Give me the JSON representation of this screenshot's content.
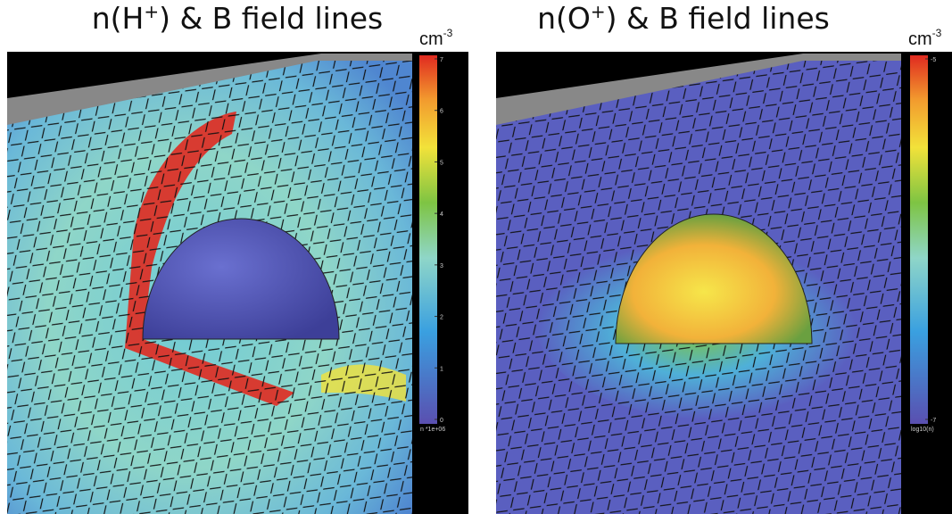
{
  "panels": [
    {
      "title": {
        "prefix": "n(H",
        "superscript": "+",
        "suffix": ") & B field lines"
      },
      "unit": {
        "base": "cm",
        "superscript": "-3"
      },
      "colorbar": {
        "tick_labels": [
          "0",
          "1",
          "2",
          "3",
          "4",
          "5",
          "6",
          "7"
        ],
        "footer": "n *1e+06"
      }
    },
    {
      "title": {
        "prefix": "n(O",
        "superscript": "+",
        "suffix": ") & B field lines"
      },
      "unit": {
        "base": "cm",
        "superscript": "-3"
      },
      "colorbar": {
        "tick_labels": [
          "-7",
          "-5"
        ],
        "footer": "log10(n)"
      }
    }
  ]
}
